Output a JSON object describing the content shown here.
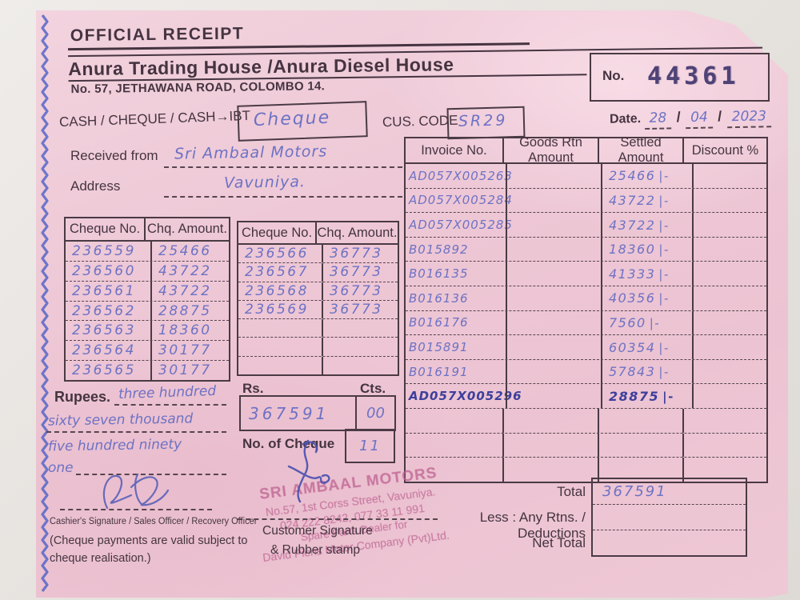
{
  "header": {
    "title": "OFFICIAL RECEIPT",
    "company": "Anura Trading House /Anura Diesel House",
    "address_line": "No. 57, JETHAWANA ROAD, COLOMBO 14.",
    "no_label": "No.",
    "receipt_no": "44361"
  },
  "payment": {
    "mode_label": "CASH / CHEQUE / CASH→IBT",
    "mode_value": "Cheque",
    "cus_code_label": "CUS. CODE",
    "cus_code_value": "SR29",
    "date_label": "Date.",
    "date_day": "28",
    "date_month": "04",
    "date_year": "2023",
    "date_separator": "/"
  },
  "parties": {
    "received_from_label": "Received from",
    "received_from_value": "Sri Ambaal Motors",
    "address_label": "Address",
    "address_value": "Vavuniya."
  },
  "cheque_table_1": {
    "headers": [
      "Cheque No.",
      "Chq. Amount."
    ],
    "rows": [
      [
        "236559",
        "25466"
      ],
      [
        "236560",
        "43722"
      ],
      [
        "236561",
        "43722"
      ],
      [
        "236562",
        "28875"
      ],
      [
        "236563",
        "18360"
      ],
      [
        "236564",
        "30177"
      ],
      [
        "236565",
        "30177"
      ]
    ]
  },
  "cheque_table_2": {
    "headers": [
      "Cheque No.",
      "Chq. Amount."
    ],
    "rows": [
      [
        "236566",
        "36773"
      ],
      [
        "236567",
        "36773"
      ],
      [
        "236568",
        "36773"
      ],
      [
        "236569",
        "36773"
      ],
      [
        "",
        ""
      ],
      [
        "",
        ""
      ],
      [
        "",
        ""
      ]
    ]
  },
  "invoice_table": {
    "headers": [
      "Invoice No.",
      "Goods Rtn Amount",
      "Settled Amount",
      "Discount %"
    ],
    "rows": [
      {
        "invoice": "AD057X005263",
        "goods_rtn": "",
        "settled": "25466",
        "mark": "|-",
        "discount": ""
      },
      {
        "invoice": "AD057X005284",
        "goods_rtn": "",
        "settled": "43722",
        "mark": "|-",
        "discount": ""
      },
      {
        "invoice": "AD057X005285",
        "goods_rtn": "",
        "settled": "43722",
        "mark": "|-",
        "discount": ""
      },
      {
        "invoice": "B015892",
        "goods_rtn": "",
        "settled": "18360",
        "mark": "|-",
        "discount": ""
      },
      {
        "invoice": "B016135",
        "goods_rtn": "",
        "settled": "41333",
        "mark": "|-",
        "discount": ""
      },
      {
        "invoice": "B016136",
        "goods_rtn": "",
        "settled": "40356",
        "mark": "|-",
        "discount": ""
      },
      {
        "invoice": "B016176",
        "goods_rtn": "",
        "settled": "7560",
        "mark": "|-",
        "discount": ""
      },
      {
        "invoice": "B015891",
        "goods_rtn": "",
        "settled": "60354",
        "mark": "|-",
        "discount": ""
      },
      {
        "invoice": "B016191",
        "goods_rtn": "",
        "settled": "57843",
        "mark": "|-",
        "discount": ""
      },
      {
        "invoice": "AD057X005296",
        "goods_rtn": "",
        "settled": "28875",
        "mark": "|-",
        "discount": ""
      },
      {
        "invoice": "",
        "goods_rtn": "",
        "settled": "",
        "mark": "",
        "discount": ""
      },
      {
        "invoice": "",
        "goods_rtn": "",
        "settled": "",
        "mark": "",
        "discount": ""
      },
      {
        "invoice": "",
        "goods_rtn": "",
        "settled": "",
        "mark": "",
        "discount": ""
      }
    ]
  },
  "amount": {
    "rupees_label": "Rupees.",
    "in_words_line1": "three hundred",
    "in_words_line2": "sixty seven thousand",
    "in_words_line3": "five hundred ninety",
    "in_words_line4": "one",
    "rs_label": "Rs.",
    "cts_label": "Cts.",
    "rs_value": "367591",
    "cts_value": "00",
    "no_of_cheque_label": "No. of Cheque",
    "no_of_cheque_value": "11"
  },
  "totals": {
    "total_label": "Total",
    "total_value": "367591",
    "less_label": "Less : Any Rtns. / Deductions",
    "less_value": "",
    "net_total_label": "Net Total",
    "net_total_value": ""
  },
  "footer": {
    "cashier_line": "Cashier's Signature / Sales Officer / Recovery Officer",
    "note_line1": "(Cheque payments are valid subject to",
    "note_line2": "cheque realisation.)",
    "customer_sig_line1": "Customer  Signature",
    "customer_sig_line2": "& Rubber stamp"
  },
  "stamp": {
    "line1": "SRI AMBAAL MOTORS",
    "line2": "No.57, 1st Corss Street, Vavuniya.",
    "line3": "024 222 8242, 077 33 11 991",
    "line4": "Spare Parts Dealer for",
    "line5": "David Pieris Motor Company (Pvt)Ltd."
  },
  "colors": {
    "paper_pink": "#eec8d5",
    "print_ink": "#453440",
    "pen_blue": "#6d72c4",
    "pen_dark_blue": "#3c3f9c",
    "stamp_purple": "#bd608f",
    "perforation_blue": "#5766c5",
    "background": "#e7e3df"
  }
}
